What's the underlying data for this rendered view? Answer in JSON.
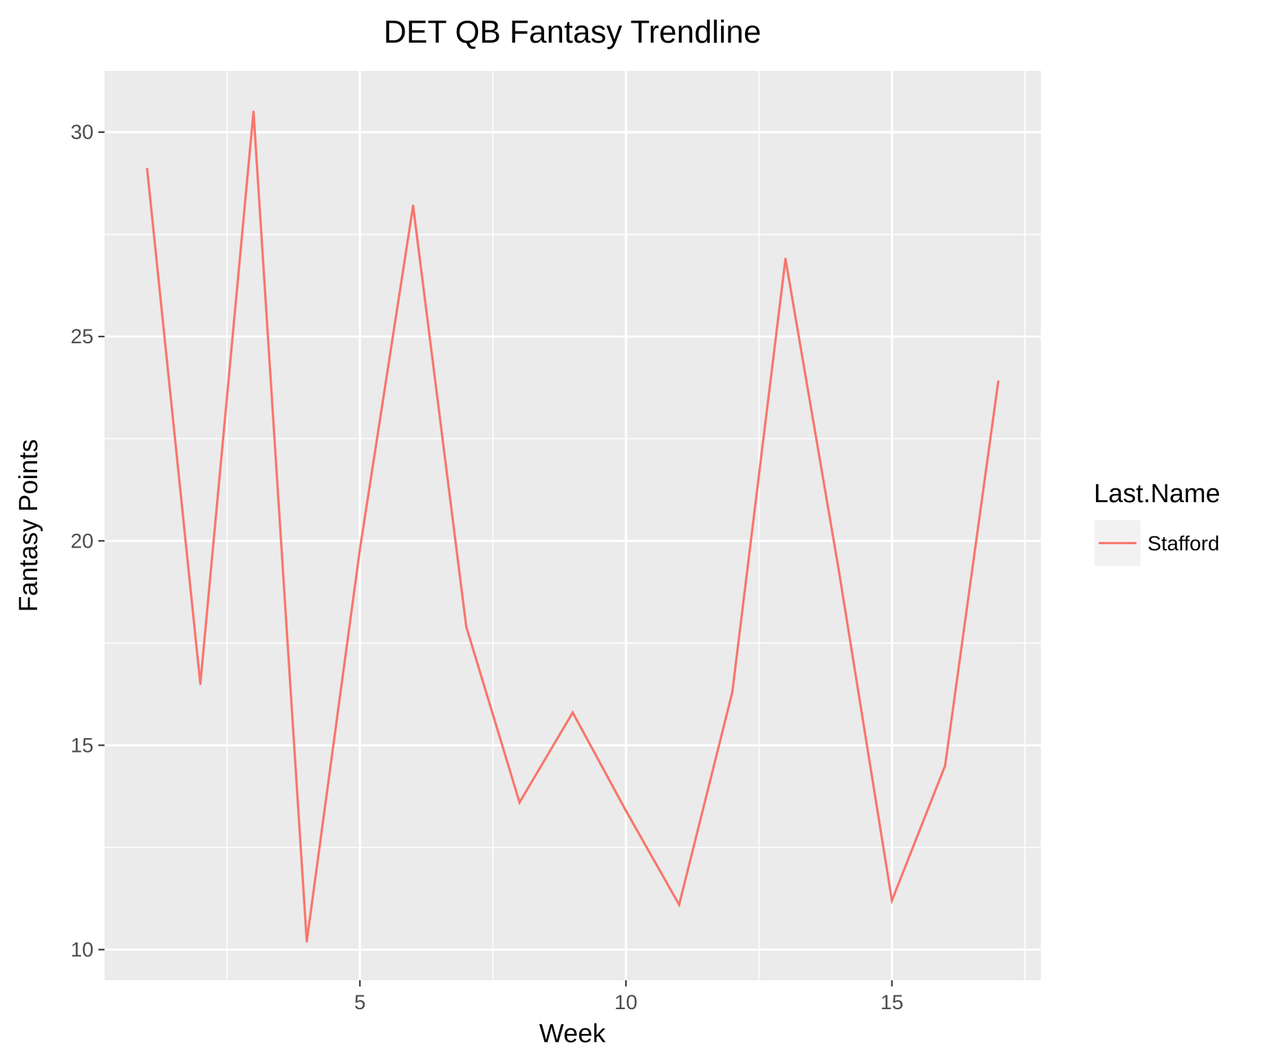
{
  "chart_data": {
    "type": "line",
    "title": "DET QB Fantasy Trendline",
    "xlabel": "Week",
    "ylabel": "Fantasy Points",
    "xlim": [
      0.2,
      17.8
    ],
    "ylim": [
      9.25,
      31.5
    ],
    "x_major_ticks": [
      5,
      10,
      15
    ],
    "y_major_ticks": [
      10,
      15,
      20,
      25,
      30
    ],
    "grid": true,
    "legend": {
      "title": "Last.Name",
      "position": "right",
      "entries": [
        {
          "name": "Stafford",
          "color": "#F8766D"
        }
      ]
    },
    "series": [
      {
        "name": "Stafford",
        "color": "#F8766D",
        "x": [
          1,
          2,
          3,
          4,
          5,
          6,
          7,
          8,
          9,
          10,
          11,
          12,
          13,
          14,
          15,
          16,
          17
        ],
        "values": [
          29.1,
          16.5,
          30.5,
          10.2,
          19.8,
          28.2,
          17.9,
          13.6,
          15.8,
          13.4,
          11.1,
          16.3,
          26.9,
          19.3,
          11.2,
          14.5,
          23.9
        ]
      }
    ]
  },
  "colors": {
    "panel_background": "#EBEBEB",
    "grid_line": "#FFFFFF",
    "series_line": "#F8766D",
    "legend_key_background": "#F2F2F2"
  }
}
